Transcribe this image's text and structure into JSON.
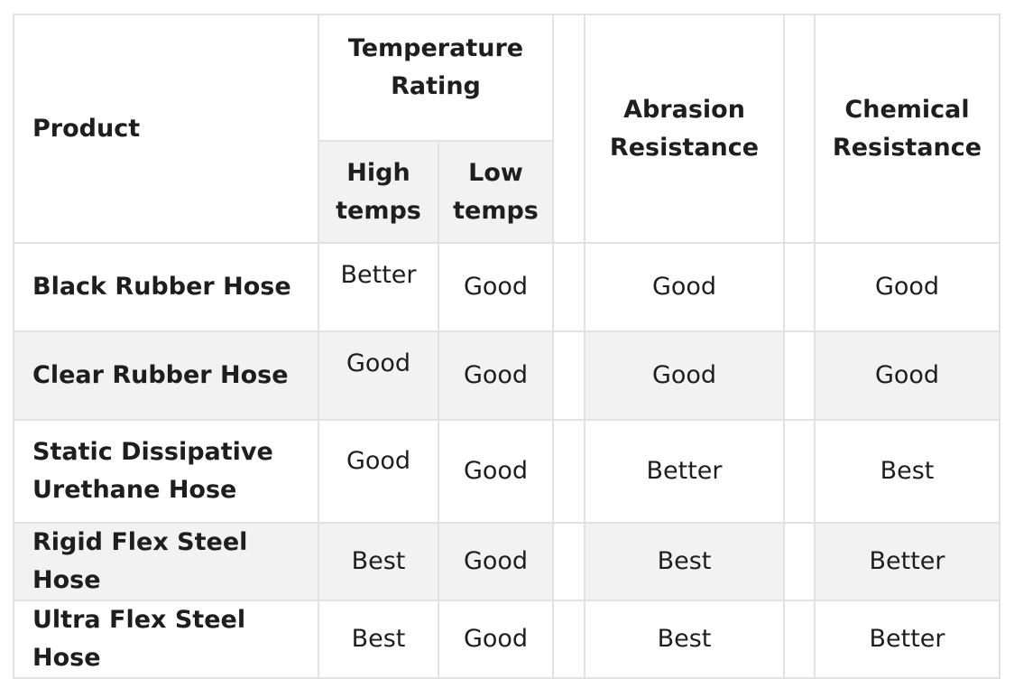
{
  "header": {
    "product": "Product",
    "temperature": "Temperature Rating",
    "high": "High temps",
    "low": "Low temps",
    "abrasion": "Abrasion Resistance",
    "chemical": "Chemical Resistance"
  },
  "rows": [
    {
      "product": "Black Rubber Hose",
      "high": "Better",
      "low": "Good",
      "abrasion": "Good",
      "chemical": "Good"
    },
    {
      "product": "Clear Rubber Hose",
      "high": "Good",
      "low": "Good",
      "abrasion": "Good",
      "chemical": "Good"
    },
    {
      "product": "Static Dissipative Urethane Hose",
      "high": "Good",
      "low": "Good",
      "abrasion": "Better",
      "chemical": "Best"
    },
    {
      "product": "Rigid Flex Steel Hose",
      "high": "Best",
      "low": "Good",
      "abrasion": "Best",
      "chemical": "Better"
    },
    {
      "product": "Ultra Flex Steel Hose",
      "high": "Best",
      "low": "Good",
      "abrasion": "Best",
      "chemical": "Better"
    }
  ]
}
